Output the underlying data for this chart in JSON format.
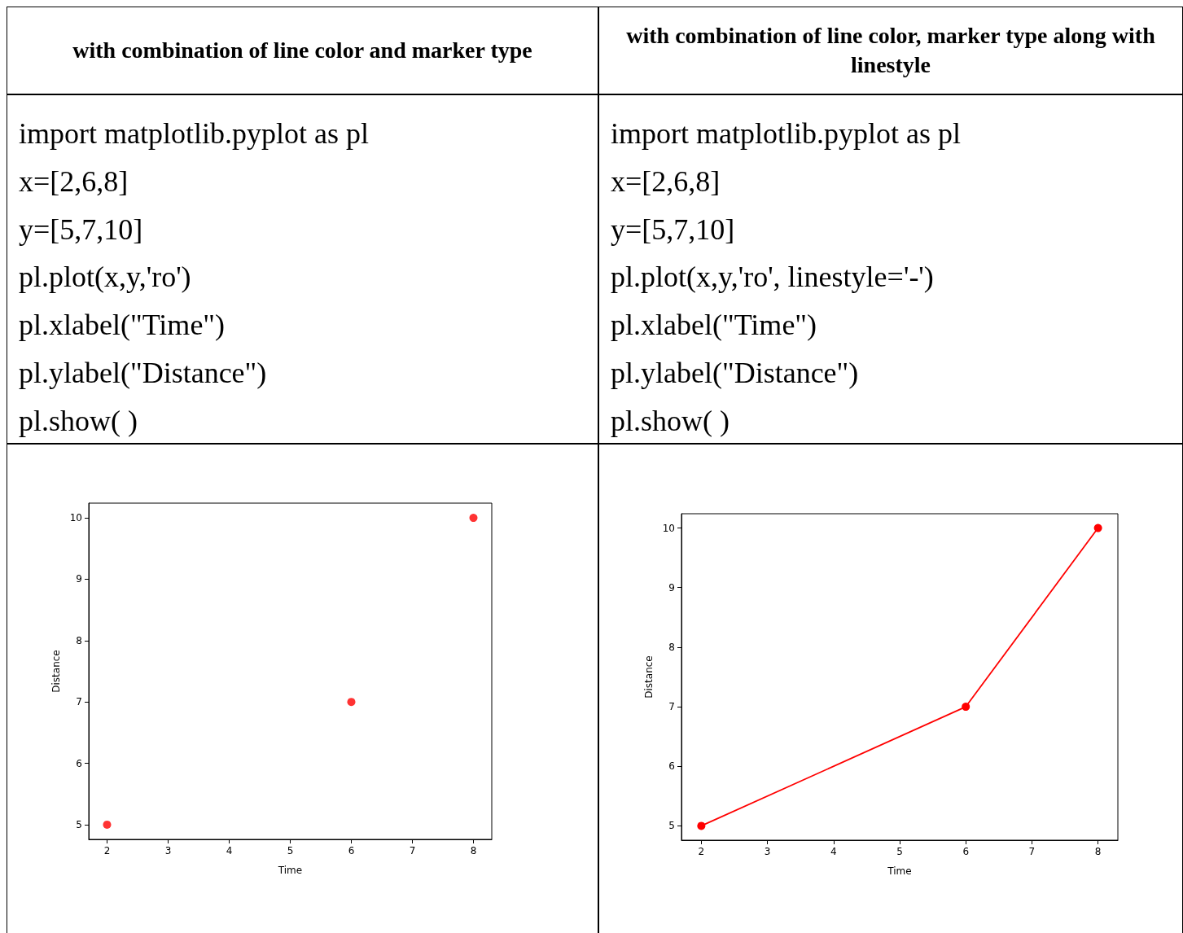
{
  "chart_data": [
    {
      "type": "other",
      "title": "with combination of line color and marker type",
      "annotations": [
        "import matplotlib.pyplot as pl",
        "x=[2,6,8]",
        "y=[5,7,10]",
        "pl.plot(x,y,'ro')",
        "pl.xlabel(\"Time\")",
        "pl.ylabel(\"Distance\")",
        "pl.show( )"
      ]
    },
    {
      "type": "other",
      "title": "with combination of line color, marker type along with linestyle",
      "annotations": [
        "import matplotlib.pyplot as pl",
        "x=[2,6,8]",
        "y=[5,7,10]",
        "pl.plot(x,y,'ro', linestyle='-')",
        "pl.xlabel(\"Time\")",
        "pl.ylabel(\"Distance\")",
        "pl.show( )"
      ]
    },
    {
      "type": "scatter",
      "x": [
        2,
        6,
        8
      ],
      "values": [
        5,
        7,
        10
      ],
      "color": "#ff0000",
      "marker": "circle",
      "xlabel": "Time",
      "ylabel": "Distance",
      "xlim": [
        1.7,
        8.3
      ],
      "ylim": [
        4.76,
        10.24
      ],
      "xticks": [
        2,
        3,
        4,
        5,
        6,
        7,
        8
      ],
      "yticks": [
        5,
        6,
        7,
        8,
        9,
        10
      ],
      "grid": false
    },
    {
      "type": "line",
      "x": [
        2,
        6,
        8
      ],
      "values": [
        5,
        7,
        10
      ],
      "color": "#ff0000",
      "marker": "circle",
      "line_style": "solid",
      "xlabel": "Time",
      "ylabel": "Distance",
      "xlim": [
        1.7,
        8.3
      ],
      "ylim": [
        4.76,
        10.24
      ],
      "xticks": [
        2,
        3,
        4,
        5,
        6,
        7,
        8
      ],
      "yticks": [
        5,
        6,
        7,
        8,
        9,
        10
      ],
      "grid": false
    }
  ]
}
